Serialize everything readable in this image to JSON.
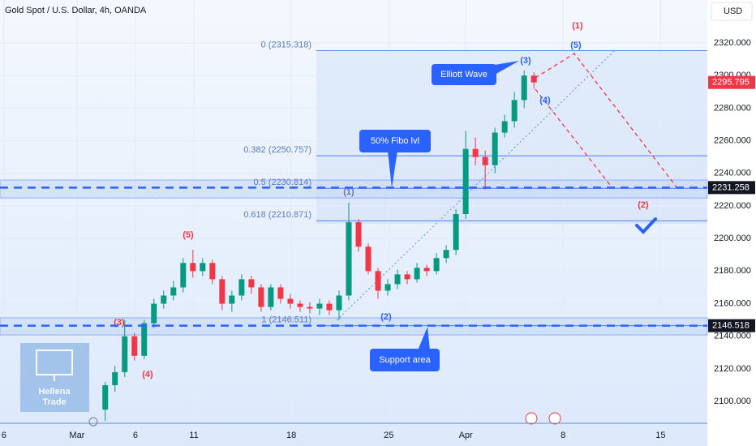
{
  "chart_data": {
    "type": "candlestick",
    "title": "Gold Spot / U.S. Dollar, 4h, OANDA",
    "currency": "USD",
    "xlim": [
      -10.8,
      61.8
    ],
    "xticks": [
      {
        "value": -10.4,
        "label": "6"
      },
      {
        "value": -2.9,
        "label": "Mar"
      },
      {
        "value": 3.1,
        "label": "6"
      },
      {
        "value": 9.1,
        "label": "11"
      },
      {
        "value": 19.1,
        "label": "18"
      },
      {
        "value": 29.1,
        "label": "25"
      },
      {
        "value": 37,
        "label": "Apr"
      },
      {
        "value": 47,
        "label": "8"
      },
      {
        "value": 57,
        "label": "15"
      }
    ],
    "ylim": [
      2086.6,
      2346.4
    ],
    "yticks": [
      {
        "value": 2100,
        "label": "2100.000"
      },
      {
        "value": 2120,
        "label": "2120.000"
      },
      {
        "value": 2140,
        "label": "2140.000"
      },
      {
        "value": 2160,
        "label": "2160.000"
      },
      {
        "value": 2180,
        "label": "2180.000"
      },
      {
        "value": 2200,
        "label": "2200.000"
      },
      {
        "value": 2220,
        "label": "2220.000"
      },
      {
        "value": 2240,
        "label": "2240.000"
      },
      {
        "value": 2260,
        "label": "2260.000"
      },
      {
        "value": 2280,
        "label": "2280.000"
      },
      {
        "value": 2300,
        "label": "2300.000"
      },
      {
        "value": 2320,
        "label": "2320.000"
      }
    ],
    "up_color": "#089981",
    "down_color": "#f23645",
    "open": [
      2095,
      2110,
      2118,
      2140,
      2128,
      2148,
      2160,
      2165,
      2170,
      2185,
      2180,
      2185,
      2175,
      2160,
      2165,
      2175,
      2170,
      2158,
      2170,
      2163,
      2160,
      2158,
      2157,
      2160,
      2156,
      2165,
      2210,
      2195,
      2180,
      2168,
      2172,
      2178,
      2175,
      2182,
      2180,
      2188,
      2193,
      2215,
      2255,
      2250,
      2245,
      2265,
      2272,
      2285,
      2300
    ],
    "high": [
      2112,
      2122,
      2150,
      2142,
      2150,
      2163,
      2168,
      2174,
      2188,
      2193,
      2188,
      2187,
      2177,
      2168,
      2178,
      2177,
      2172,
      2172,
      2172,
      2166,
      2162,
      2161,
      2163,
      2162,
      2168,
      2222,
      2212,
      2197,
      2182,
      2175,
      2181,
      2180,
      2185,
      2184,
      2191,
      2196,
      2218,
      2266,
      2262,
      2254,
      2268,
      2276,
      2290,
      2303,
      2302
    ],
    "low": [
      2088,
      2106,
      2115,
      2125,
      2126,
      2145,
      2157,
      2162,
      2167,
      2176,
      2177,
      2172,
      2156,
      2155,
      2162,
      2166,
      2155,
      2156,
      2160,
      2157,
      2155,
      2154,
      2153,
      2153,
      2150,
      2162,
      2192,
      2178,
      2163,
      2165,
      2169,
      2172,
      2173,
      2177,
      2178,
      2185,
      2190,
      2212,
      2245,
      2230,
      2240,
      2262,
      2268,
      2280,
      2292
    ],
    "close": [
      2110,
      2118,
      2140,
      2128,
      2148,
      2160,
      2165,
      2170,
      2185,
      2180,
      2185,
      2175,
      2160,
      2165,
      2175,
      2170,
      2158,
      2170,
      2163,
      2160,
      2158,
      2157,
      2160,
      2156,
      2165,
      2210,
      2195,
      2180,
      2168,
      2172,
      2178,
      2175,
      2182,
      2180,
      2188,
      2193,
      2215,
      2255,
      2250,
      2245,
      2265,
      2272,
      2285,
      2300,
      2295.795
    ],
    "fib_levels": [
      {
        "value": 2315.318,
        "label": "0 (2315.318)"
      },
      {
        "value": 2250.757,
        "label": "0.382 (2250.757)"
      },
      {
        "value": 2230.814,
        "label": "0.5 (2230.814)"
      },
      {
        "value": 2210.871,
        "label": "0.618 (2210.871)"
      },
      {
        "value": 2146.511,
        "label": "1 (2146.511)"
      }
    ],
    "zones": [
      [
        2224.9,
        2235.9
      ],
      [
        2140.8,
        2151.3
      ]
    ],
    "price_tags": [
      {
        "value": 2295.795,
        "label": "2295.795",
        "color": "#f23645",
        "dashed": false
      },
      {
        "value": 2231.258,
        "label": "2231.258",
        "color": "#131722",
        "dashed": true
      },
      {
        "value": 2146.518,
        "label": "2146.518",
        "color": "#131722",
        "dashed": true
      }
    ],
    "wave_labels": [
      {
        "text": "(1)",
        "color": "#f23645"
      },
      {
        "text": "(5)",
        "color": "#2962ff"
      },
      {
        "text": "(3)",
        "color": "#2962ff"
      },
      {
        "text": "(4)",
        "color": "#2962ff"
      },
      {
        "text": "(2)",
        "color": "#f23645"
      },
      {
        "text": "(1)",
        "color": "#787b86"
      },
      {
        "text": "(2)",
        "color": "#2962ff"
      },
      {
        "text": "(5)",
        "color": "#f23645"
      },
      {
        "text": "(3)",
        "color": "#f23645"
      },
      {
        "text": "(4)",
        "color": "#f23645"
      }
    ],
    "callouts": [
      "Elliott Wave",
      "50% Fibo lvl",
      "Support area"
    ],
    "logo": [
      "Hellena",
      "Trade"
    ]
  }
}
